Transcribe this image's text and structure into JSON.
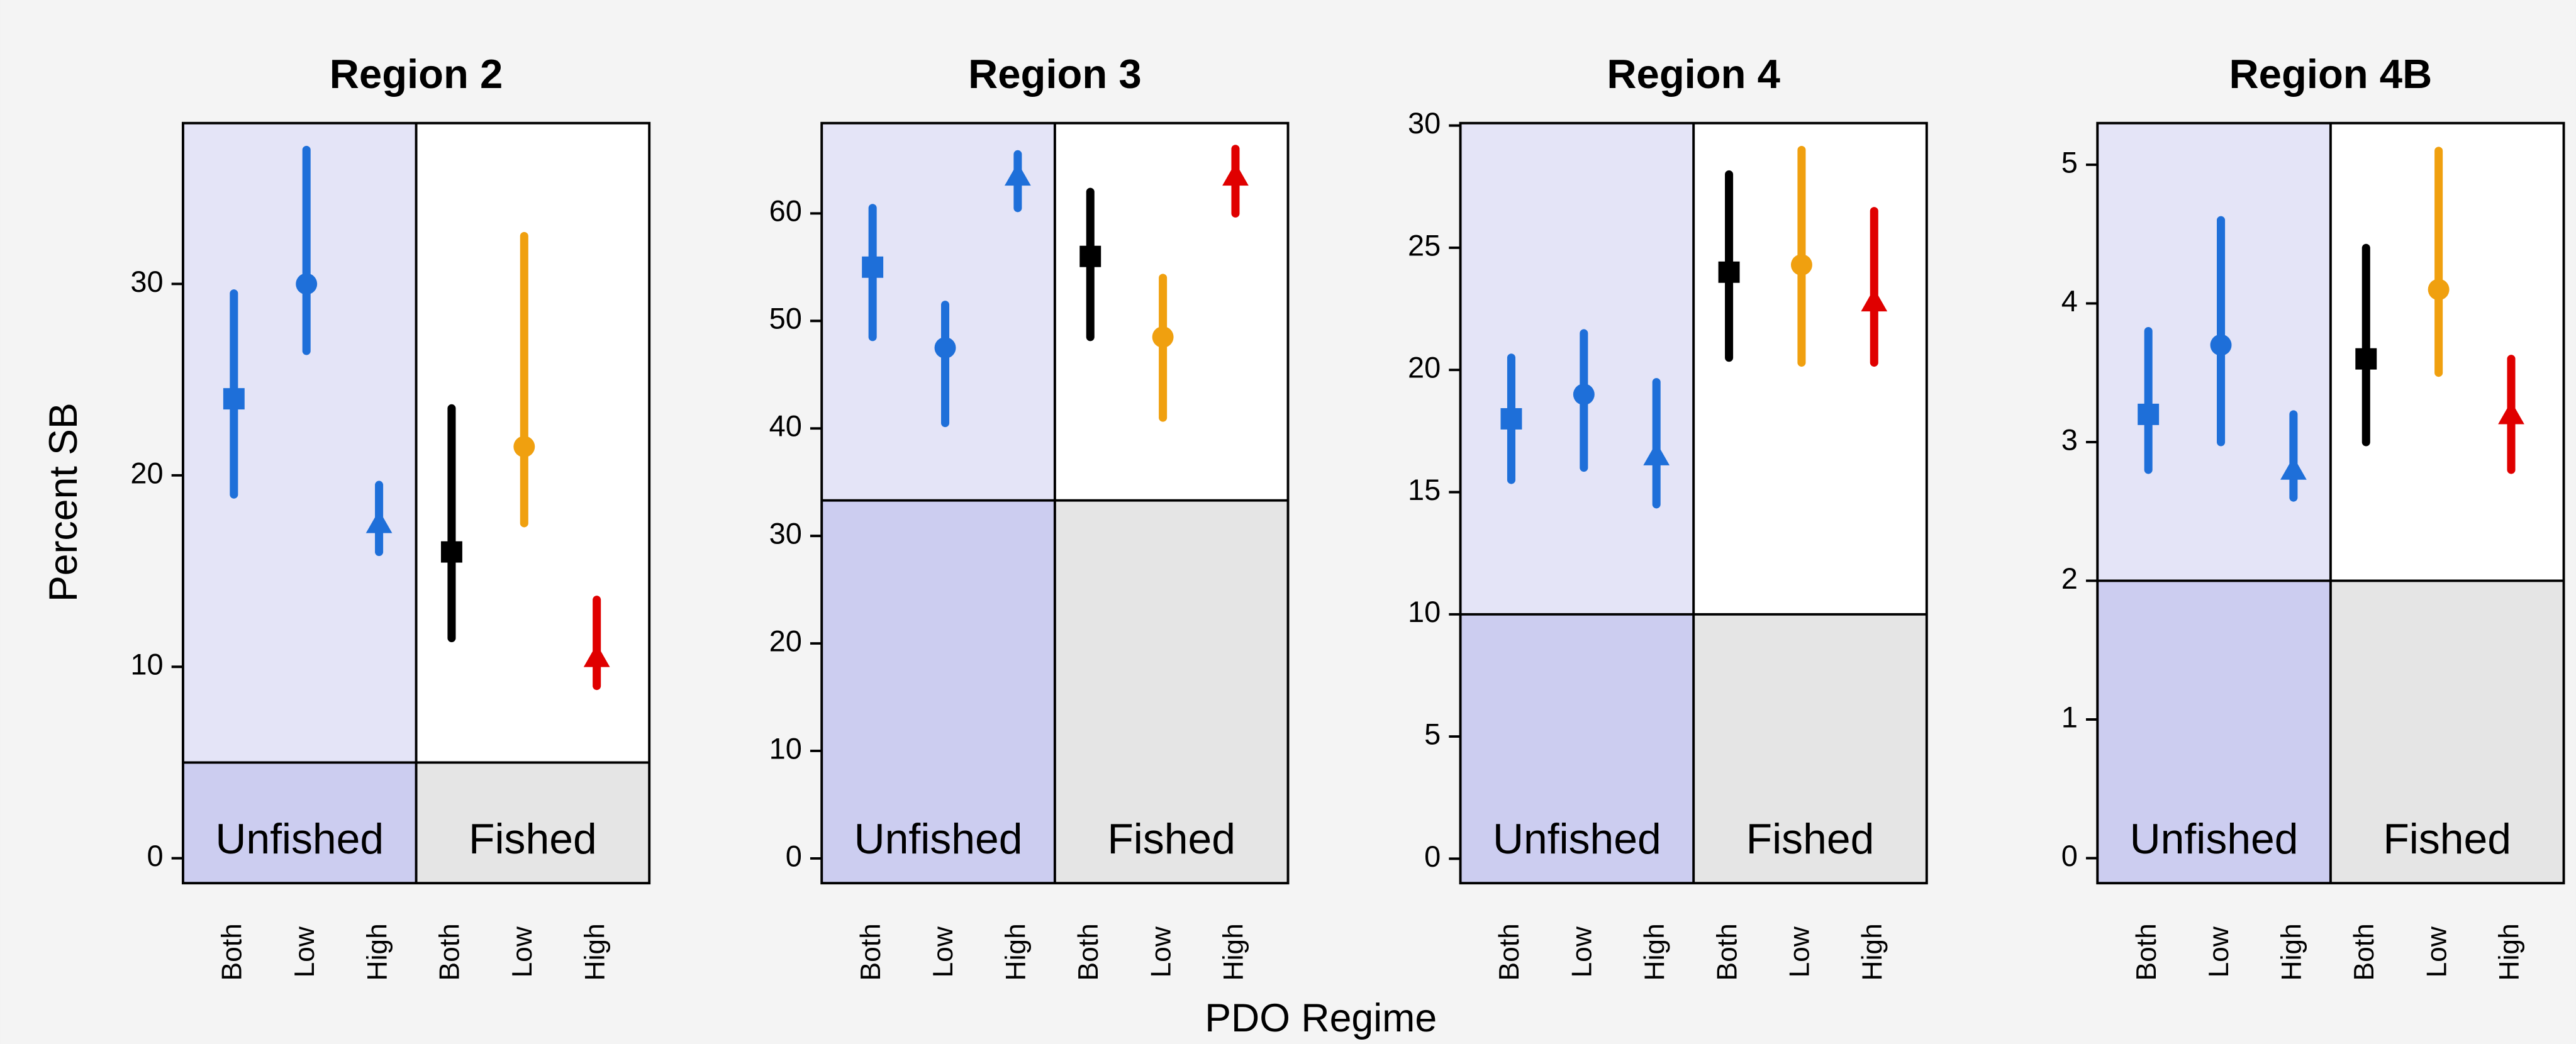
{
  "xlabel": "PDO Regime",
  "chart_data": [
    {
      "type": "point-range",
      "title": "Region 2",
      "ylabel": "Percent SB",
      "categories": [
        "Both",
        "Low",
        "High",
        "Both",
        "Low",
        "High"
      ],
      "groups": [
        "Unfished",
        "Fished"
      ],
      "values": [
        24,
        30,
        17.5,
        16,
        21.5,
        10.5
      ],
      "lower": [
        19,
        26.5,
        16,
        11.5,
        17.5,
        9
      ],
      "upper": [
        29.5,
        37,
        19.5,
        23.5,
        32.5,
        13.5
      ],
      "colors": [
        "#1e6fd9",
        "#1e6fd9",
        "#1e6fd9",
        "#000000",
        "#f0a00f",
        "#e00000"
      ],
      "markers": [
        "square",
        "circle",
        "triangle",
        "square",
        "circle",
        "triangle"
      ],
      "threshold": 5,
      "ylim": [
        -1.3,
        38.4
      ],
      "yticks": [
        0,
        10,
        20,
        30
      ]
    },
    {
      "type": "point-range",
      "title": "Region 3",
      "categories": [
        "Both",
        "Low",
        "High",
        "Both",
        "Low",
        "High"
      ],
      "groups": [
        "Unfished",
        "Fished"
      ],
      "values": [
        55,
        47.5,
        63.5,
        56,
        48.5,
        63.5
      ],
      "lower": [
        48.5,
        40.5,
        60.5,
        48.5,
        41,
        60
      ],
      "upper": [
        60.5,
        51.5,
        65.5,
        62,
        54,
        66
      ],
      "colors": [
        "#1e6fd9",
        "#1e6fd9",
        "#1e6fd9",
        "#000000",
        "#f0a00f",
        "#e00000"
      ],
      "markers": [
        "square",
        "circle",
        "triangle",
        "square",
        "circle",
        "triangle"
      ],
      "threshold": 33.3,
      "ylim": [
        -2.3,
        68.4
      ],
      "yticks": [
        0,
        10,
        20,
        30,
        40,
        50,
        60
      ]
    },
    {
      "type": "point-range",
      "title": "Region 4",
      "categories": [
        "Both",
        "Low",
        "High",
        "Both",
        "Low",
        "High"
      ],
      "groups": [
        "Unfished",
        "Fished"
      ],
      "values": [
        18,
        19,
        16.5,
        24,
        24.3,
        22.8
      ],
      "lower": [
        15.5,
        16,
        14.5,
        20.5,
        20.3,
        20.3
      ],
      "upper": [
        20.5,
        21.5,
        19.5,
        28,
        29,
        26.5
      ],
      "colors": [
        "#1e6fd9",
        "#1e6fd9",
        "#1e6fd9",
        "#000000",
        "#f0a00f",
        "#e00000"
      ],
      "markers": [
        "square",
        "circle",
        "triangle",
        "square",
        "circle",
        "triangle"
      ],
      "threshold": 10,
      "ylim": [
        -1,
        30.1
      ],
      "yticks": [
        0,
        5,
        10,
        15,
        20,
        25,
        30
      ]
    },
    {
      "type": "point-range",
      "title": "Region 4B",
      "categories": [
        "Both",
        "Low",
        "High",
        "Both",
        "Low",
        "High"
      ],
      "groups": [
        "Unfished",
        "Fished"
      ],
      "values": [
        3.2,
        3.7,
        2.8,
        3.6,
        4.1,
        3.2
      ],
      "lower": [
        2.8,
        3,
        2.6,
        3,
        3.5,
        2.8
      ],
      "upper": [
        3.8,
        4.6,
        3.2,
        4.4,
        5.1,
        3.6
      ],
      "colors": [
        "#1e6fd9",
        "#1e6fd9",
        "#1e6fd9",
        "#000000",
        "#f0a00f",
        "#e00000"
      ],
      "markers": [
        "square",
        "circle",
        "triangle",
        "square",
        "circle",
        "triangle"
      ],
      "threshold": 2,
      "ylim": [
        -0.18,
        5.3
      ],
      "yticks": [
        0,
        1,
        2,
        3,
        4,
        5
      ]
    }
  ]
}
